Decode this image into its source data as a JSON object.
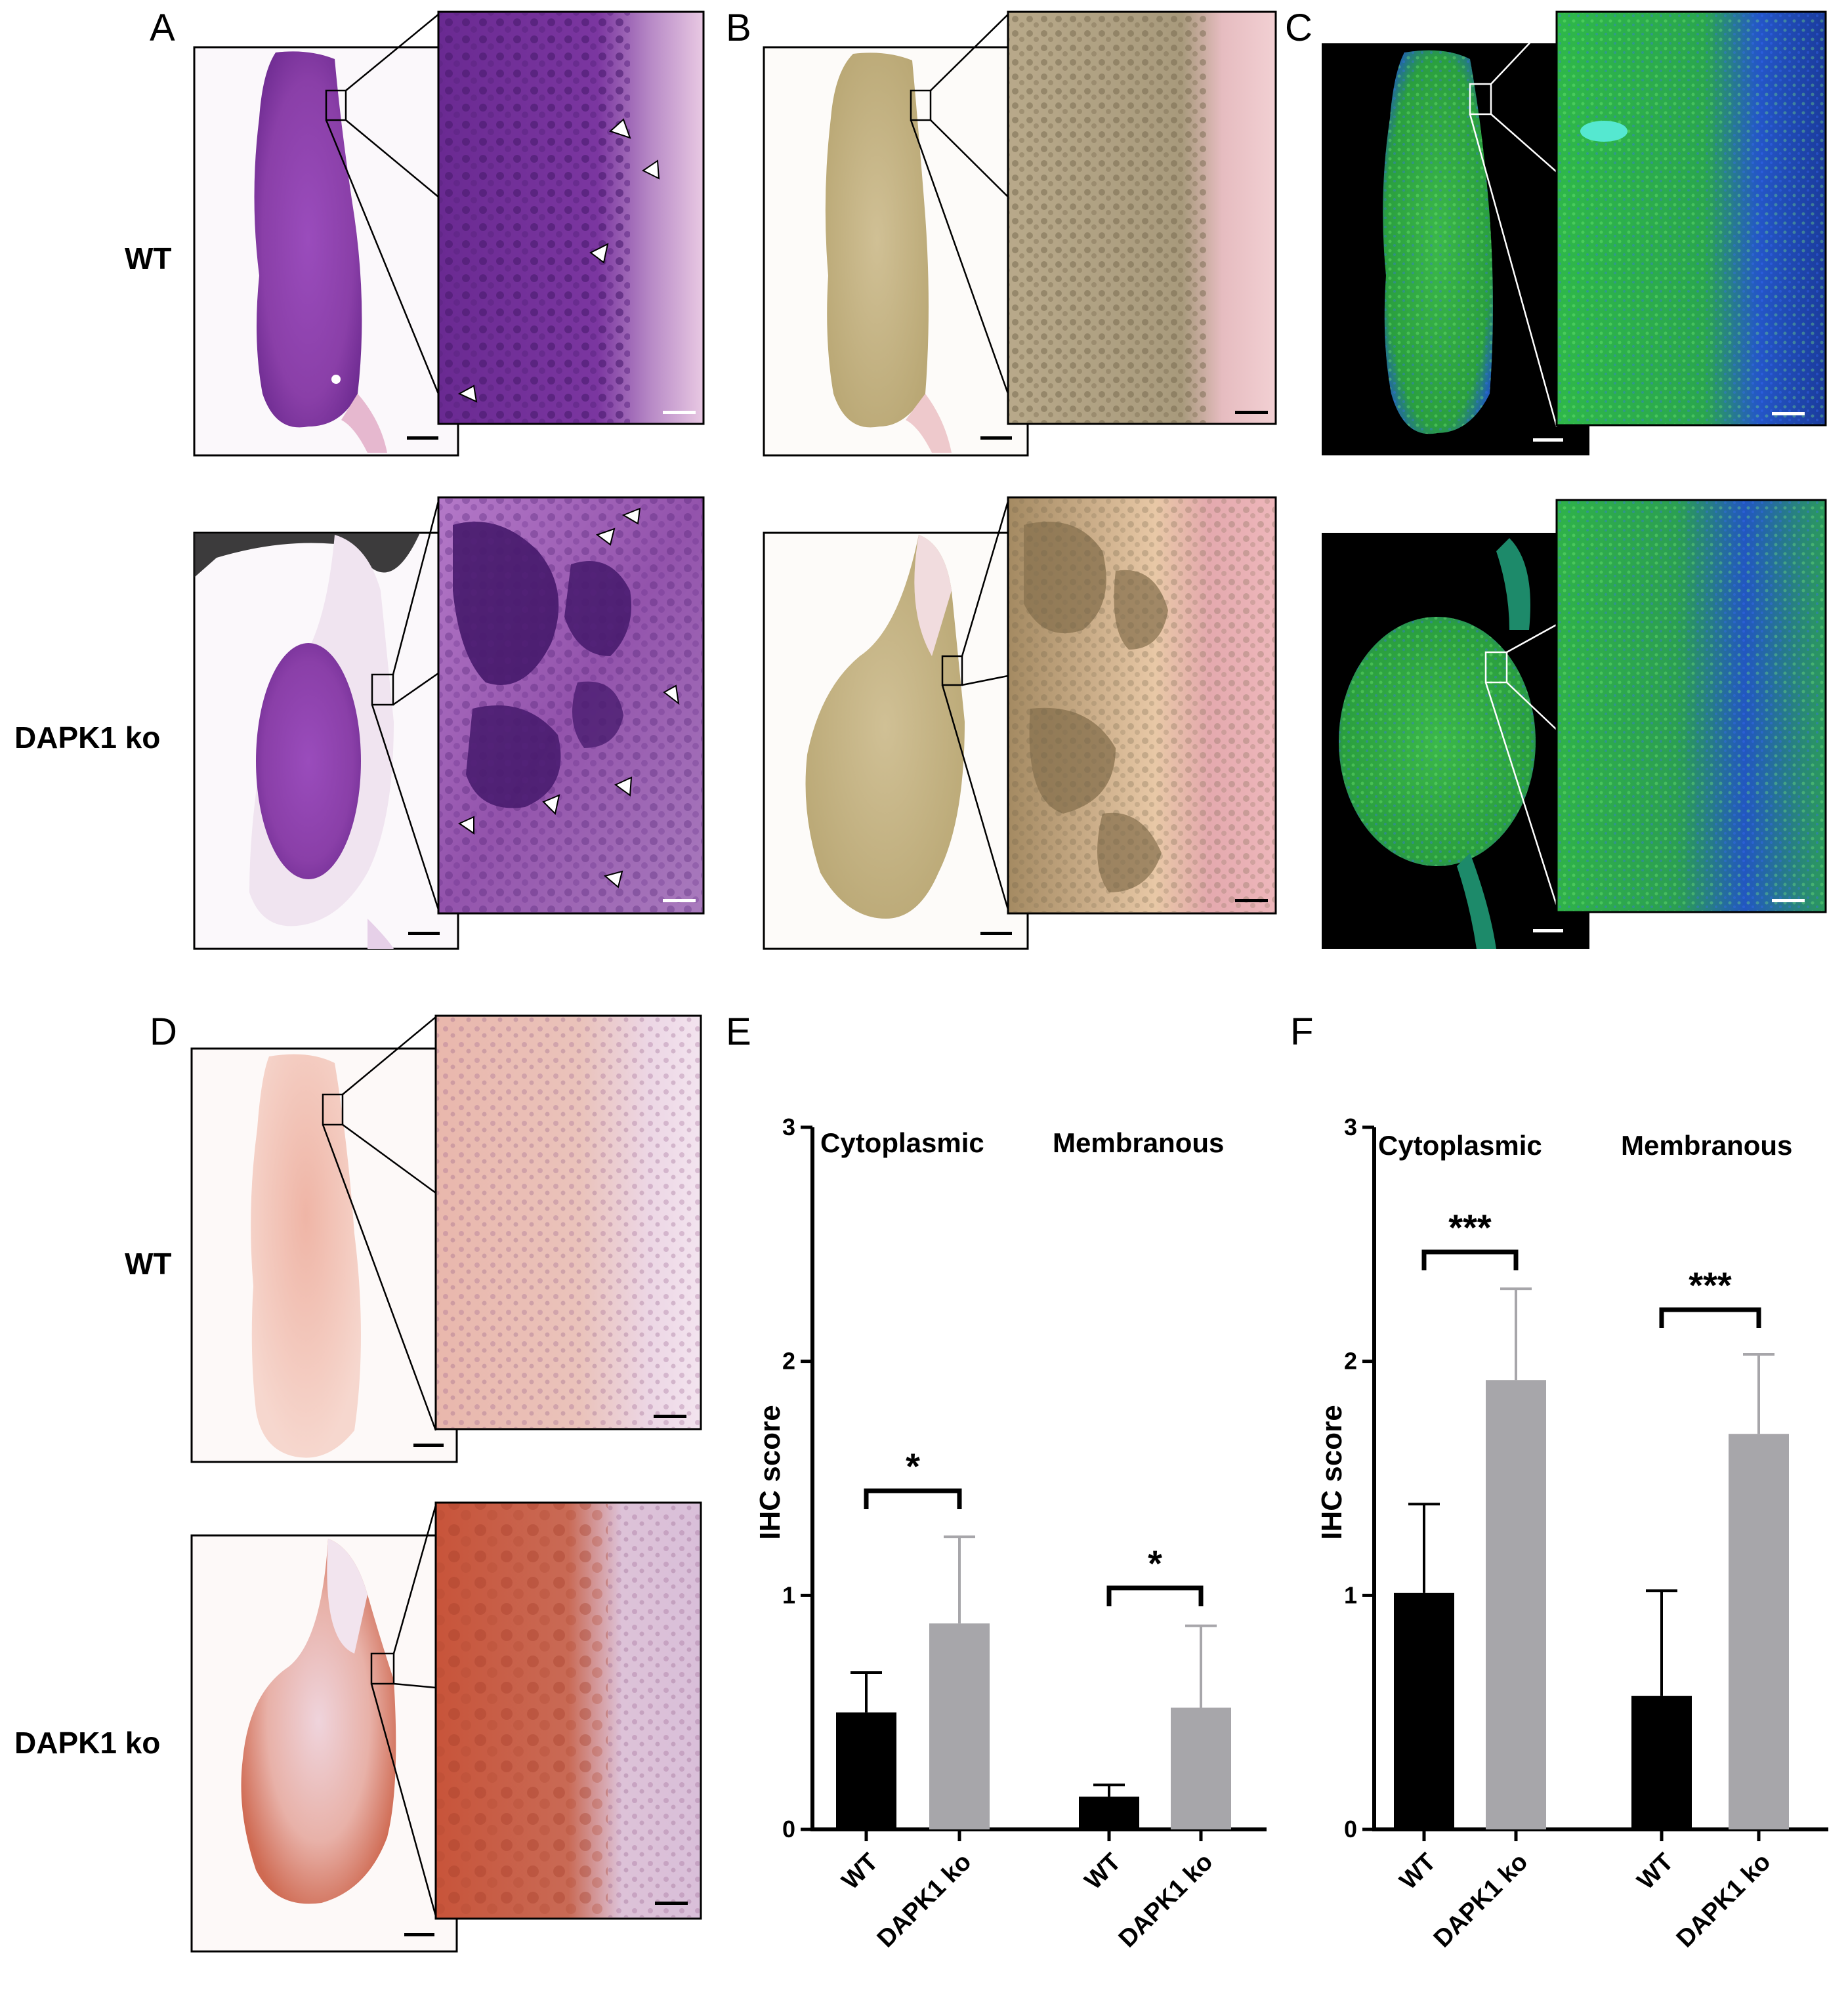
{
  "panels": {
    "A": "A",
    "B": "B",
    "C": "C",
    "D": "D",
    "E": "E",
    "F": "F"
  },
  "row_labels": {
    "wt_top": "WT",
    "ko_top": "DAPK1 ko",
    "wt_bottom": "WT",
    "ko_bottom": "DAPK1 ko"
  },
  "colors": {
    "he_tissue": "#8a3fa8",
    "he_dark": "#5a1f7e",
    "he_stroma": "#d8b6d8",
    "elastica_tissue": "#c9b98a",
    "elastica_stroma": "#e7b7bd",
    "fluor_bg": "#000000",
    "fluor_green": "#2fbf3a",
    "fluor_blue": "#1f4fd0",
    "ihc_weak": "#efc2b4",
    "ihc_strong": "#c8543a",
    "wt_bar": "#000000",
    "ko_bar": "#a7a6aa"
  },
  "chart_data": [
    {
      "panel": "E",
      "type": "bar",
      "ylabel": "IHC score",
      "ylim": [
        0,
        3
      ],
      "yticks": [
        0,
        1,
        2,
        3
      ],
      "groups": [
        {
          "name": "Cytoplasmic",
          "categories": [
            "WT",
            "DAPK1 ko"
          ],
          "values": [
            0.5,
            0.88
          ],
          "errors": [
            0.17,
            0.37
          ],
          "significance": "*"
        },
        {
          "name": "Membranous",
          "categories": [
            "WT",
            "DAPK1 ko"
          ],
          "values": [
            0.14,
            0.52
          ],
          "errors": [
            0.05,
            0.35
          ],
          "significance": "*"
        }
      ]
    },
    {
      "panel": "F",
      "type": "bar",
      "ylabel": "IHC score",
      "ylim": [
        0,
        3
      ],
      "yticks": [
        0,
        1,
        2,
        3
      ],
      "groups": [
        {
          "name": "Cytoplasmic",
          "categories": [
            "WT",
            "DAPK1 ko"
          ],
          "values": [
            1.01,
            1.92
          ],
          "errors": [
            0.38,
            0.39
          ],
          "significance": "***"
        },
        {
          "name": "Membranous",
          "categories": [
            "WT",
            "DAPK1 ko"
          ],
          "values": [
            0.57,
            1.69
          ],
          "errors": [
            0.45,
            0.34
          ],
          "significance": "***"
        }
      ]
    }
  ]
}
